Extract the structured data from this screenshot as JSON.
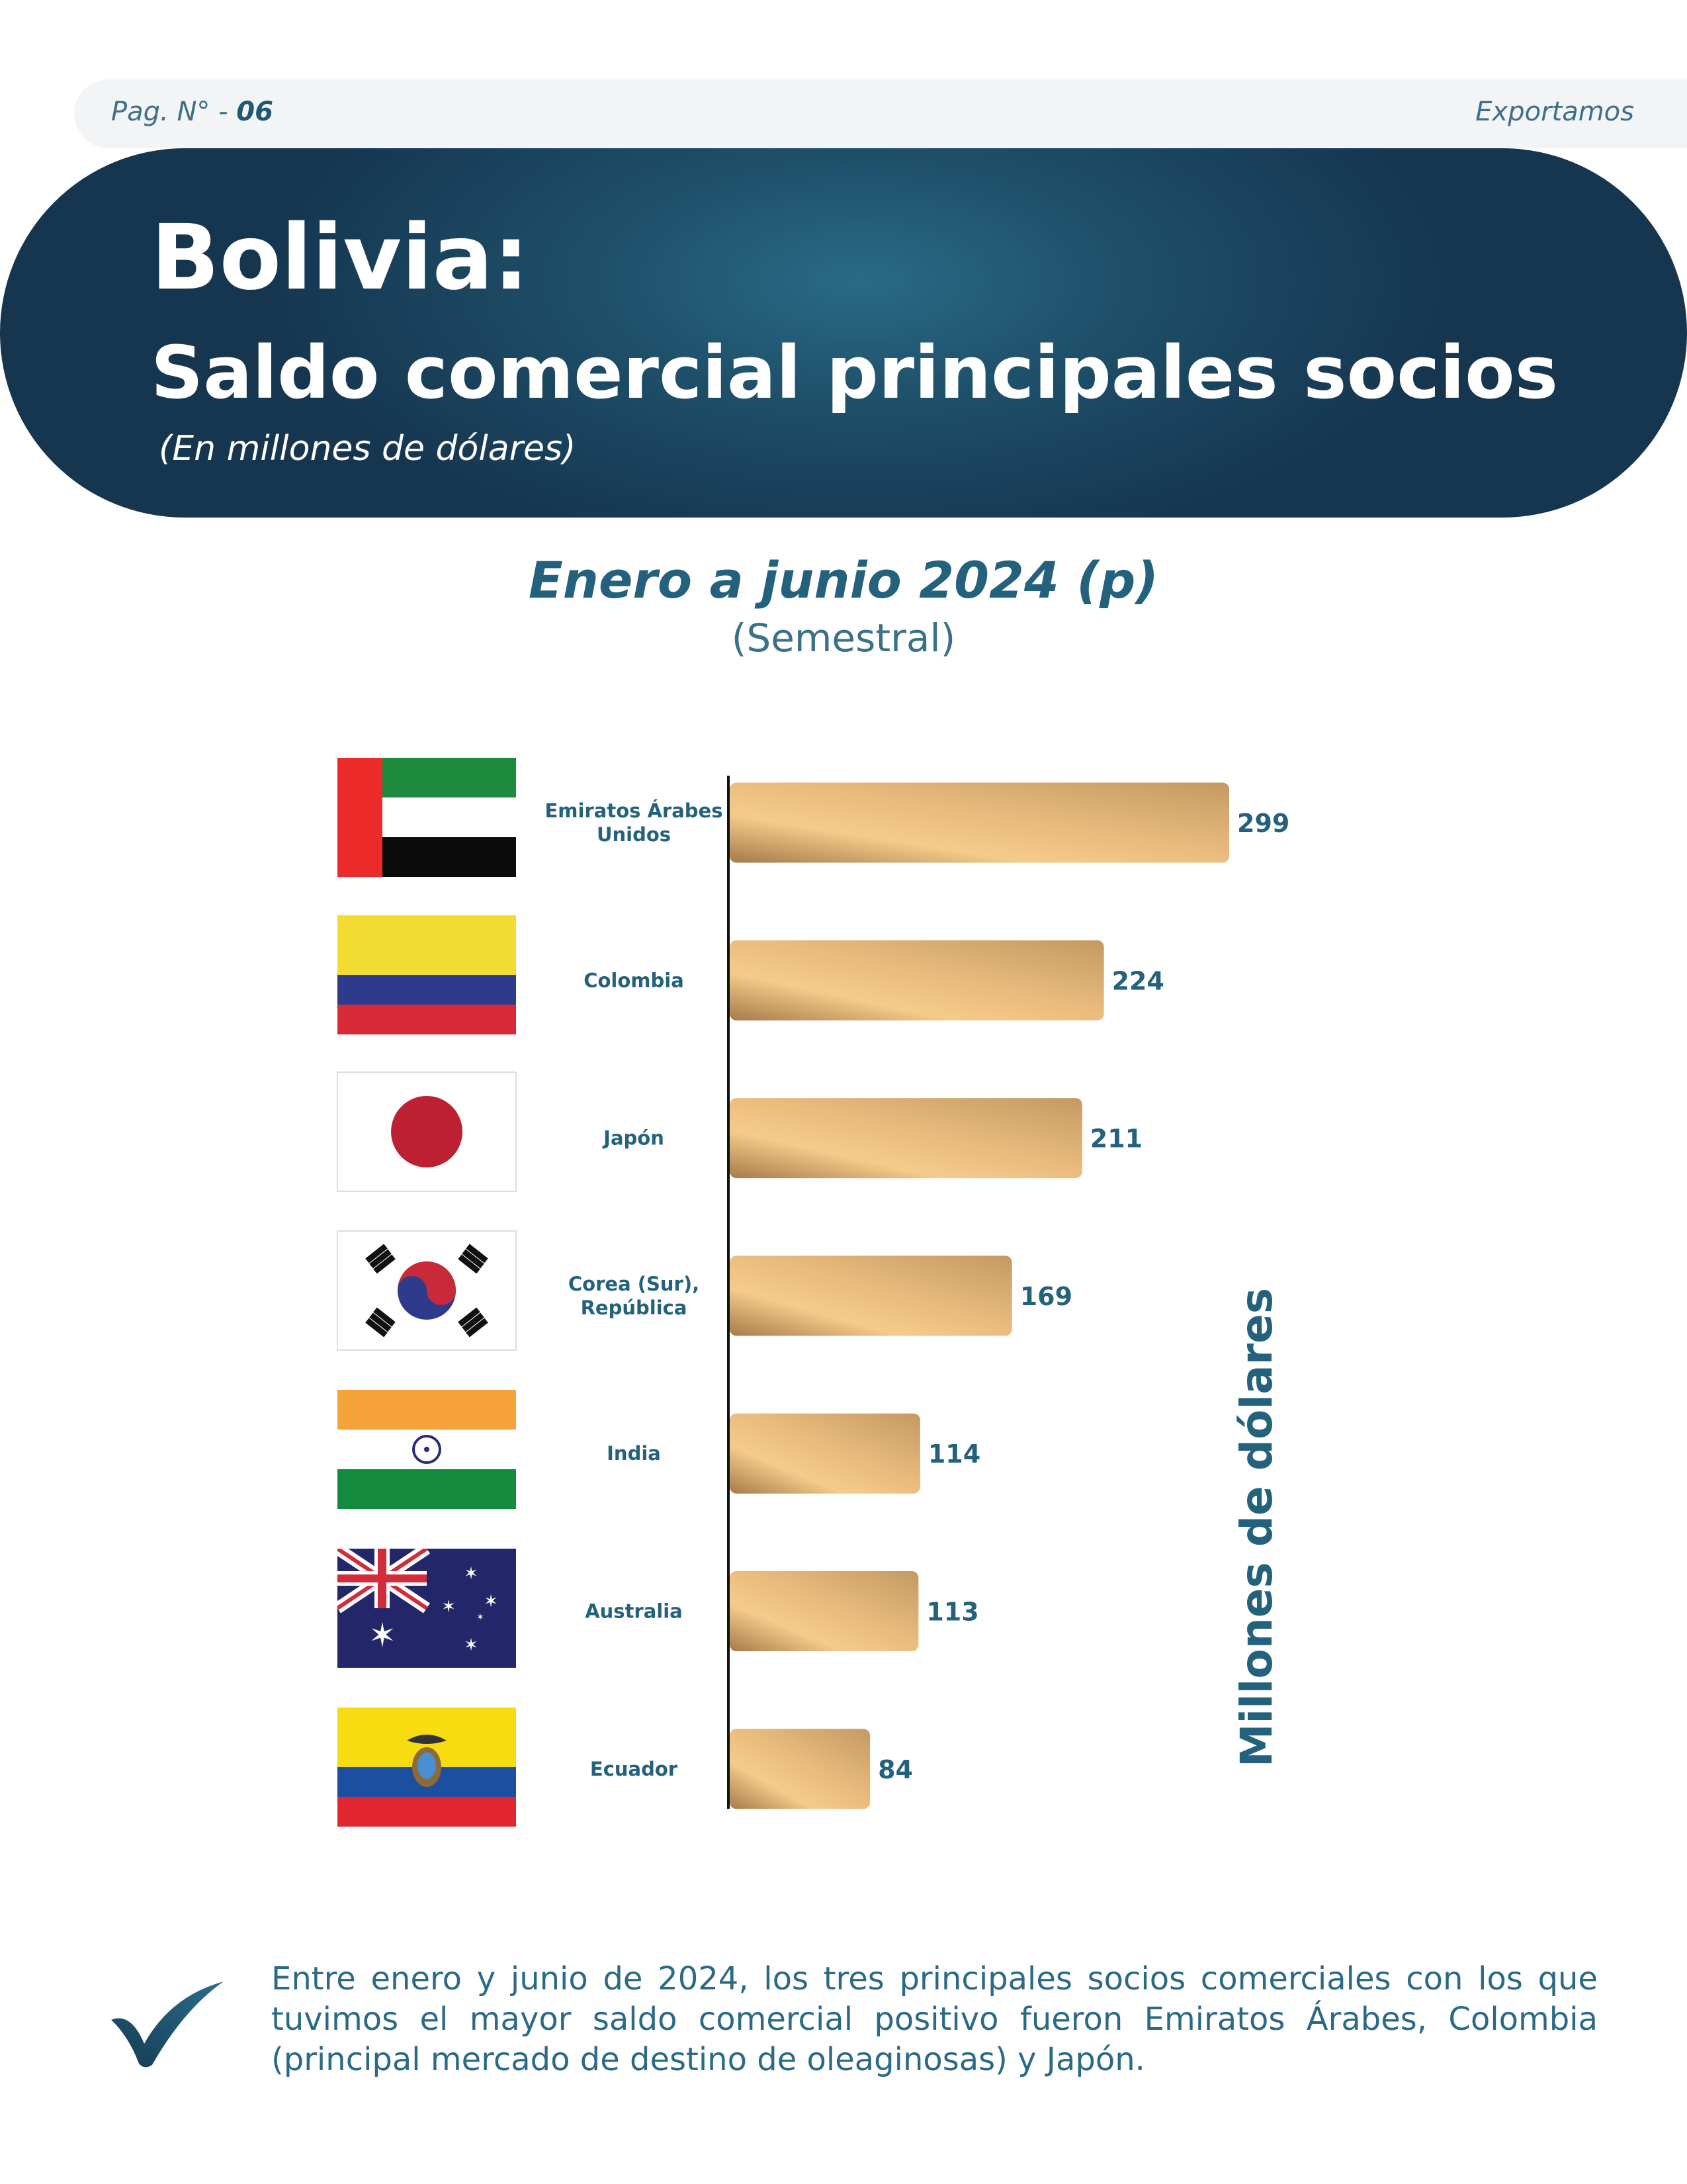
{
  "header": {
    "page_label": "Pag. N° -",
    "page_number": "06",
    "section": "Exportamos"
  },
  "banner": {
    "title": "Bolivia:",
    "subtitle": "Saldo comercial principales socios",
    "unit": "(En millones de dólares)"
  },
  "period": {
    "title": "Enero a junio 2024 (p)",
    "subtitle": "(Semestral)"
  },
  "colors": {
    "bar_gold_light": "#f5cb8a",
    "bar_gold_dark": "#a77a4a",
    "text_teal": "#23617c",
    "banner_dark": "#163650"
  },
  "chart_data": {
    "type": "bar",
    "orientation": "horizontal",
    "categories": [
      "Emiratos Árabes Unidos",
      "Colombia",
      "Japón",
      "Corea (Sur), República",
      "India",
      "Australia",
      "Ecuador"
    ],
    "category_lines": [
      [
        "Emiratos Árabes",
        "Unidos"
      ],
      [
        "Colombia"
      ],
      [
        "Japón"
      ],
      [
        "Corea (Sur),",
        "República"
      ],
      [
        "India"
      ],
      [
        "Australia"
      ],
      [
        "Ecuador"
      ]
    ],
    "flags": [
      "uae-flag",
      "colombia-flag",
      "japan-flag",
      "south-korea-flag",
      "india-flag",
      "australia-flag",
      "ecuador-flag"
    ],
    "values": [
      299,
      224,
      211,
      169,
      114,
      113,
      84
    ],
    "value_labels": [
      "299",
      "224",
      "211",
      "169",
      "114",
      "113",
      "84"
    ],
    "ylabel": "Millones de dólares",
    "xlim": [
      0,
      299
    ]
  },
  "note": {
    "lines": [
      "Entre enero y junio de 2024, los tres principales socios comerciales con los que",
      "tuvimos el mayor saldo comercial positivo fueron Emiratos Árabes, Colombia",
      "(principal mercado de destino de oleaginosas) y Japón."
    ]
  }
}
